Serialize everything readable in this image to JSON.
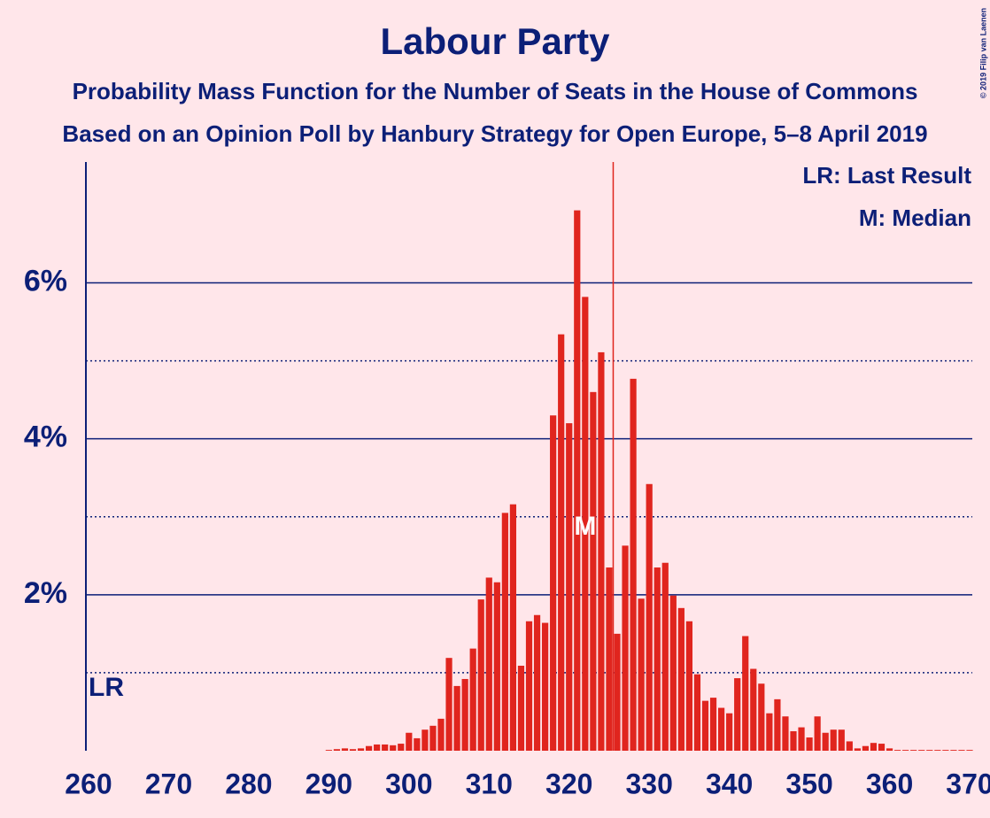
{
  "chart_data": {
    "type": "bar",
    "title": "Labour Party",
    "subtitle": "Probability Mass Function for the Number of Seats in the House of Commons",
    "subtitle2": "Based on an Opinion Poll by Hanbury Strategy for Open Europe, 5–8 April 2019",
    "copyright": "© 2019 Filip van Laenen",
    "legend": [
      "LR: Last Result",
      "M: Median"
    ],
    "color": "#e0251e",
    "x": [
      260,
      261,
      262,
      263,
      264,
      265,
      266,
      267,
      268,
      269,
      270,
      271,
      272,
      273,
      274,
      275,
      276,
      277,
      278,
      279,
      280,
      281,
      282,
      283,
      284,
      285,
      286,
      287,
      288,
      289,
      290,
      291,
      292,
      293,
      294,
      295,
      296,
      297,
      298,
      299,
      300,
      301,
      302,
      303,
      304,
      305,
      306,
      307,
      308,
      309,
      310,
      311,
      312,
      313,
      314,
      315,
      316,
      317,
      318,
      319,
      320,
      321,
      322,
      323,
      324,
      325,
      326,
      327,
      328,
      329,
      330,
      331,
      332,
      333,
      334,
      335,
      336,
      337,
      338,
      339,
      340,
      341,
      342,
      343,
      344,
      345,
      346,
      347,
      348,
      349,
      350,
      351,
      352,
      353,
      354,
      355,
      356,
      357,
      358,
      359,
      360,
      361,
      362,
      363,
      364,
      365,
      366,
      367,
      368,
      369,
      370
    ],
    "values": [
      0,
      0,
      0,
      0,
      0,
      0,
      0,
      0,
      0,
      0,
      0,
      0,
      0,
      0,
      0,
      0,
      0,
      0,
      0,
      0,
      0,
      0,
      0,
      0,
      0,
      0,
      0,
      0,
      0,
      0,
      0.01,
      0.02,
      0.03,
      0.02,
      0.03,
      0.06,
      0.08,
      0.08,
      0.07,
      0.09,
      0.23,
      0.16,
      0.27,
      0.32,
      0.41,
      1.19,
      0.83,
      0.92,
      1.31,
      1.94,
      2.22,
      2.16,
      3.05,
      3.16,
      1.09,
      1.66,
      1.74,
      1.64,
      4.3,
      5.34,
      4.2,
      6.93,
      5.82,
      4.6,
      5.11,
      2.35,
      1.5,
      2.63,
      4.77,
      1.95,
      3.42,
      2.35,
      2.41,
      1.99,
      1.83,
      1.66,
      0.98,
      0.64,
      0.68,
      0.55,
      0.48,
      0.93,
      1.47,
      1.05,
      0.86,
      0.48,
      0.66,
      0.44,
      0.25,
      0.3,
      0.17,
      0.44,
      0.23,
      0.27,
      0.27,
      0.12,
      0.03,
      0.06,
      0.1,
      0.09,
      0.03,
      0.01,
      0.01,
      0.01,
      0.01,
      0.01,
      0.01,
      0.01,
      0.01,
      0.01,
      0.01
    ],
    "xlim": [
      260,
      370
    ],
    "xticks": [
      260,
      270,
      280,
      290,
      300,
      310,
      320,
      330,
      340,
      350,
      360,
      370
    ],
    "ylim": [
      0,
      7.55
    ],
    "yticks": [
      {
        "value": 2,
        "label": "2%"
      },
      {
        "value": 4,
        "label": "4%"
      },
      {
        "value": 6,
        "label": "6%"
      }
    ],
    "minor_yticks": [
      1,
      3,
      5
    ],
    "last_result": {
      "x": 262,
      "label": "LR"
    },
    "median": {
      "x": 322,
      "label": "M"
    },
    "majority": 326
  }
}
